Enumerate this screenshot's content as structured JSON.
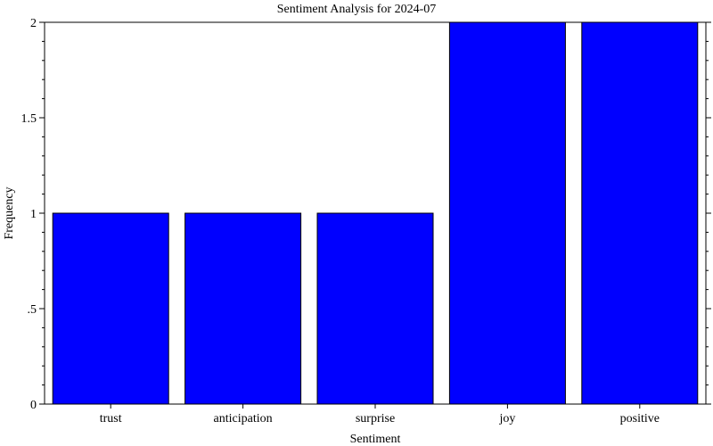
{
  "chart_data": {
    "type": "bar",
    "title": "Sentiment Analysis for 2024-07",
    "xlabel": "Sentiment",
    "ylabel": "Frequency",
    "categories": [
      "trust",
      "anticipation",
      "surprise",
      "joy",
      "positive"
    ],
    "values": [
      1,
      1,
      1,
      2,
      2
    ],
    "ylim": [
      0,
      2
    ],
    "yticks": [
      0,
      0.5,
      1,
      1.5,
      2
    ],
    "ytick_labels": [
      "0",
      ".5",
      "1",
      "1.5",
      "2"
    ],
    "bar_color": "#0000ff",
    "bar_edge_color": "#000000",
    "grid": false,
    "legend": "none"
  }
}
